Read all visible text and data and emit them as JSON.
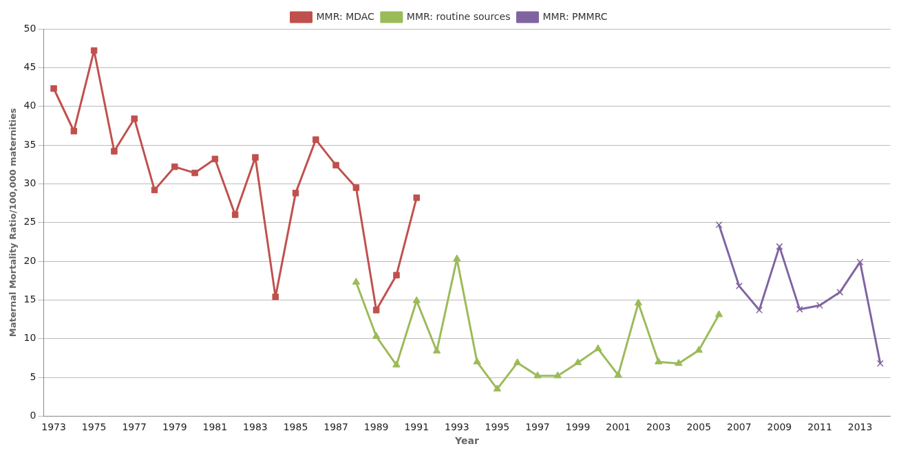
{
  "chart_data": {
    "type": "line",
    "xlabel": "Year",
    "ylabel": "Maternal Mortality Ratio/100,000 maternities",
    "categories": [
      "1973",
      null,
      "1975",
      null,
      "1977",
      null,
      "1979",
      null,
      "1981",
      null,
      "1983",
      null,
      "1985",
      null,
      "1987",
      null,
      "1989",
      null,
      "1991",
      null,
      "1993",
      null,
      "1995",
      null,
      "1997",
      null,
      "1999",
      null,
      "2001",
      null,
      "2003",
      null,
      "2005",
      null,
      "2007",
      null,
      "2009",
      null,
      "2011",
      null,
      "2013",
      null
    ],
    "series": [
      {
        "name": "MMR: MDAC",
        "color": "#c0504d",
        "marker": "square",
        "values": [
          42.3,
          36.8,
          47.2,
          34.2,
          38.4,
          29.2,
          32.2,
          31.4,
          33.2,
          26.0,
          33.4,
          15.4,
          28.8,
          35.7,
          32.4,
          29.5,
          13.7,
          18.2,
          28.2,
          null,
          null,
          null,
          null,
          null,
          null,
          null,
          null,
          null,
          null,
          null,
          null,
          null,
          null,
          null,
          null,
          null,
          null,
          null,
          null,
          null,
          null,
          null
        ]
      },
      {
        "name": "MMR: routine sources",
        "color": "#9bbb59",
        "marker": "triangle",
        "values": [
          null,
          null,
          null,
          null,
          null,
          null,
          null,
          null,
          null,
          null,
          null,
          null,
          null,
          null,
          null,
          17.3,
          10.3,
          6.6,
          14.9,
          8.4,
          20.3,
          7.0,
          3.5,
          6.9,
          5.2,
          5.2,
          6.9,
          8.7,
          5.3,
          14.6,
          7.0,
          6.8,
          8.5,
          13.1,
          null,
          null,
          null,
          null,
          null,
          null,
          null,
          null
        ]
      },
      {
        "name": "MMR: PMMRC",
        "color": "#8064a2",
        "marker": "cross",
        "values": [
          null,
          null,
          null,
          null,
          null,
          null,
          null,
          null,
          null,
          null,
          null,
          null,
          null,
          null,
          null,
          null,
          null,
          null,
          null,
          null,
          null,
          null,
          null,
          null,
          null,
          null,
          null,
          null,
          null,
          null,
          null,
          null,
          null,
          24.7,
          16.8,
          13.7,
          21.9,
          13.8,
          14.3,
          16.0,
          19.9,
          6.8
        ]
      }
    ],
    "ylim": [
      0,
      50
    ],
    "yticks": [
      0,
      5,
      10,
      15,
      20,
      25,
      30,
      35,
      40,
      45,
      50
    ],
    "grid": "y",
    "legend": "top",
    "line_style": "solid"
  }
}
